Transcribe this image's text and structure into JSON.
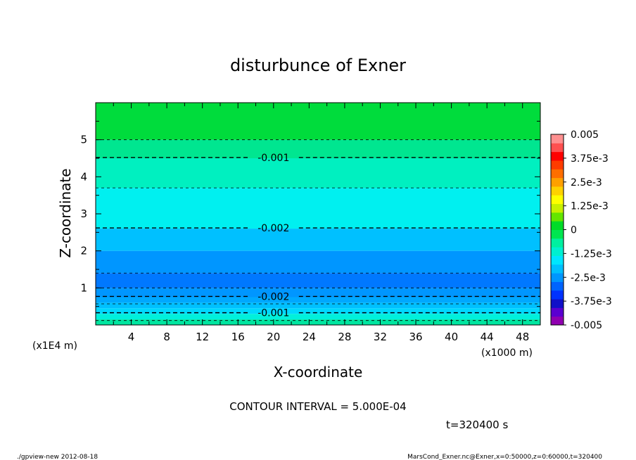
{
  "chart_data": {
    "type": "heatmap",
    "title": "disturbunce of Exner",
    "xlabel": "X-coordinate",
    "ylabel": "Z-coordinate",
    "x_unit": "(x1000 m)",
    "y_unit": "(x1E4 m)",
    "xlim": [
      0,
      50
    ],
    "ylim": [
      0,
      6
    ],
    "x_ticks": [
      4,
      8,
      12,
      16,
      20,
      24,
      28,
      32,
      36,
      40,
      44,
      48
    ],
    "y_ticks": [
      1,
      2,
      3,
      4,
      5
    ],
    "bands": [
      {
        "z0": 0.0,
        "z1": 0.15,
        "color": "#00e6a0"
      },
      {
        "z0": 0.15,
        "z1": 0.3,
        "color": "#00f0dc"
      },
      {
        "z0": 0.3,
        "z1": 0.45,
        "color": "#00d8ff"
      },
      {
        "z0": 0.45,
        "z1": 0.6,
        "color": "#00c0ff"
      },
      {
        "z0": 0.6,
        "z1": 0.75,
        "color": "#00a8ff"
      },
      {
        "z0": 0.75,
        "z1": 1.0,
        "color": "#0096ff"
      },
      {
        "z0": 1.0,
        "z1": 1.4,
        "color": "#0078ff"
      },
      {
        "z0": 1.4,
        "z1": 2.0,
        "color": "#0096ff"
      },
      {
        "z0": 2.0,
        "z1": 2.6,
        "color": "#00c0ff"
      },
      {
        "z0": 2.6,
        "z1": 3.7,
        "color": "#00f0f0"
      },
      {
        "z0": 3.7,
        "z1": 4.5,
        "color": "#00f0c0"
      },
      {
        "z0": 4.5,
        "z1": 5.0,
        "color": "#00e690"
      },
      {
        "z0": 5.0,
        "z1": 6.0,
        "color": "#00dc3c"
      }
    ],
    "contours": [
      {
        "z": 0.12,
        "label": ""
      },
      {
        "z": 0.33,
        "label": "-0.001"
      },
      {
        "z": 0.57,
        "label": ""
      },
      {
        "z": 0.77,
        "label": "-0.002"
      },
      {
        "z": 1.0,
        "label": ""
      },
      {
        "z": 1.4,
        "label": ""
      },
      {
        "z": 2.62,
        "label": "-0.002"
      },
      {
        "z": 3.7,
        "label": ""
      },
      {
        "z": 4.52,
        "label": "-0.001"
      },
      {
        "z": 5.0,
        "label": ""
      }
    ],
    "colorbar": {
      "min": -0.005,
      "max": 0.005,
      "labels": [
        "0.005",
        "3.75e-3",
        "2.5e-3",
        "1.25e-3",
        "0",
        "-1.25e-3",
        "-2.5e-3",
        "-3.75e-3",
        "-0.005"
      ],
      "colors": [
        "#9000b0",
        "#5a00d0",
        "#1010c8",
        "#0032ff",
        "#0064ff",
        "#0096ff",
        "#00c0ff",
        "#00e6ff",
        "#00f0d0",
        "#00f0a0",
        "#00e650",
        "#00dc28",
        "#64e600",
        "#c8f000",
        "#ffff00",
        "#ffd200",
        "#ffa000",
        "#ff6e00",
        "#ff3c00",
        "#ff0000",
        "#ff5050",
        "#ff9090"
      ]
    },
    "annotations": {
      "contour_interval": "CONTOUR INTERVAL = 5.000E-04",
      "time": "t=320400 s"
    }
  },
  "footer": {
    "left": "./gpview-new  2012-08-18",
    "right": "MarsCond_Exner.nc@Exner,x=0:50000,z=0:60000,t=320400"
  }
}
